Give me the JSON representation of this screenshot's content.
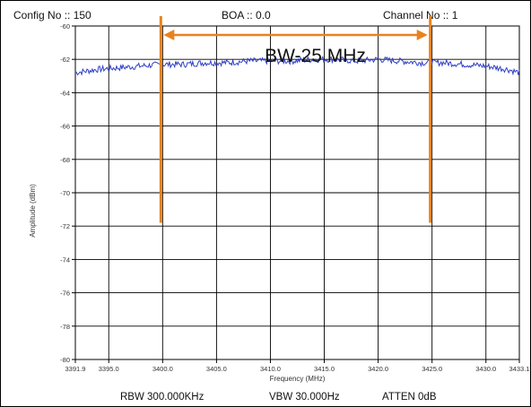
{
  "header": {
    "config": "Config No :: 150",
    "boa": "BOA :: 0.0",
    "channel": "Channel No :: 1"
  },
  "footer": {
    "rbw": "RBW 300.000KHz",
    "vbw": "VBW 30.000Hz",
    "atten": "ATTEN 0dB"
  },
  "annotation": {
    "label": "BW-25 MHz",
    "start_mhz": 3400.0,
    "end_mhz": 3425.0,
    "bottom_dbm": -71.8,
    "color": "#e8821e"
  },
  "colors": {
    "trace": "#2f3fc4",
    "grid": "#000000",
    "annotation": "#e8821e"
  },
  "chart_data": {
    "type": "line",
    "xlabel": "Frequency (MHz)",
    "ylabel": "Amplitude (dBm)",
    "xlim": [
      3391.9,
      3433.1
    ],
    "ylim": [
      -80,
      -60
    ],
    "x_ticks": [
      3391.9,
      3395.0,
      3400.0,
      3405.0,
      3410.0,
      3415.0,
      3420.0,
      3425.0,
      3430.0,
      3433.1
    ],
    "x_tick_labels": [
      "3391.9",
      "3395.0",
      "3400.0",
      "3405.0",
      "3410.0",
      "3415.0",
      "3420.0",
      "3425.0",
      "3430.0",
      "3433.1"
    ],
    "y_ticks": [
      -60,
      -62,
      -64,
      -66,
      -68,
      -70,
      -72,
      -74,
      -76,
      -78,
      -80
    ],
    "y_tick_labels": [
      "-60",
      "-62",
      "-64",
      "-66",
      "-68",
      "-70",
      "-72",
      "-74",
      "-76",
      "-78",
      "-80"
    ],
    "grid": true,
    "series": [
      {
        "x": [
          3391.9,
          3394.0,
          3396.0,
          3398.0,
          3400.0,
          3402.0,
          3404.0,
          3406.0,
          3408.0,
          3410.0,
          3412.0,
          3414.0,
          3416.0,
          3418.0,
          3420.0,
          3422.0,
          3424.0,
          3426.0,
          3428.0,
          3430.0,
          3432.0,
          3433.1
        ],
        "values": [
          -62.8,
          -62.6,
          -62.5,
          -62.4,
          -62.3,
          -62.3,
          -62.2,
          -62.2,
          -62.1,
          -62.1,
          -62.1,
          -62.0,
          -62.0,
          -62.1,
          -62.0,
          -62.1,
          -62.2,
          -62.2,
          -62.3,
          -62.4,
          -62.6,
          -62.8
        ]
      }
    ]
  }
}
